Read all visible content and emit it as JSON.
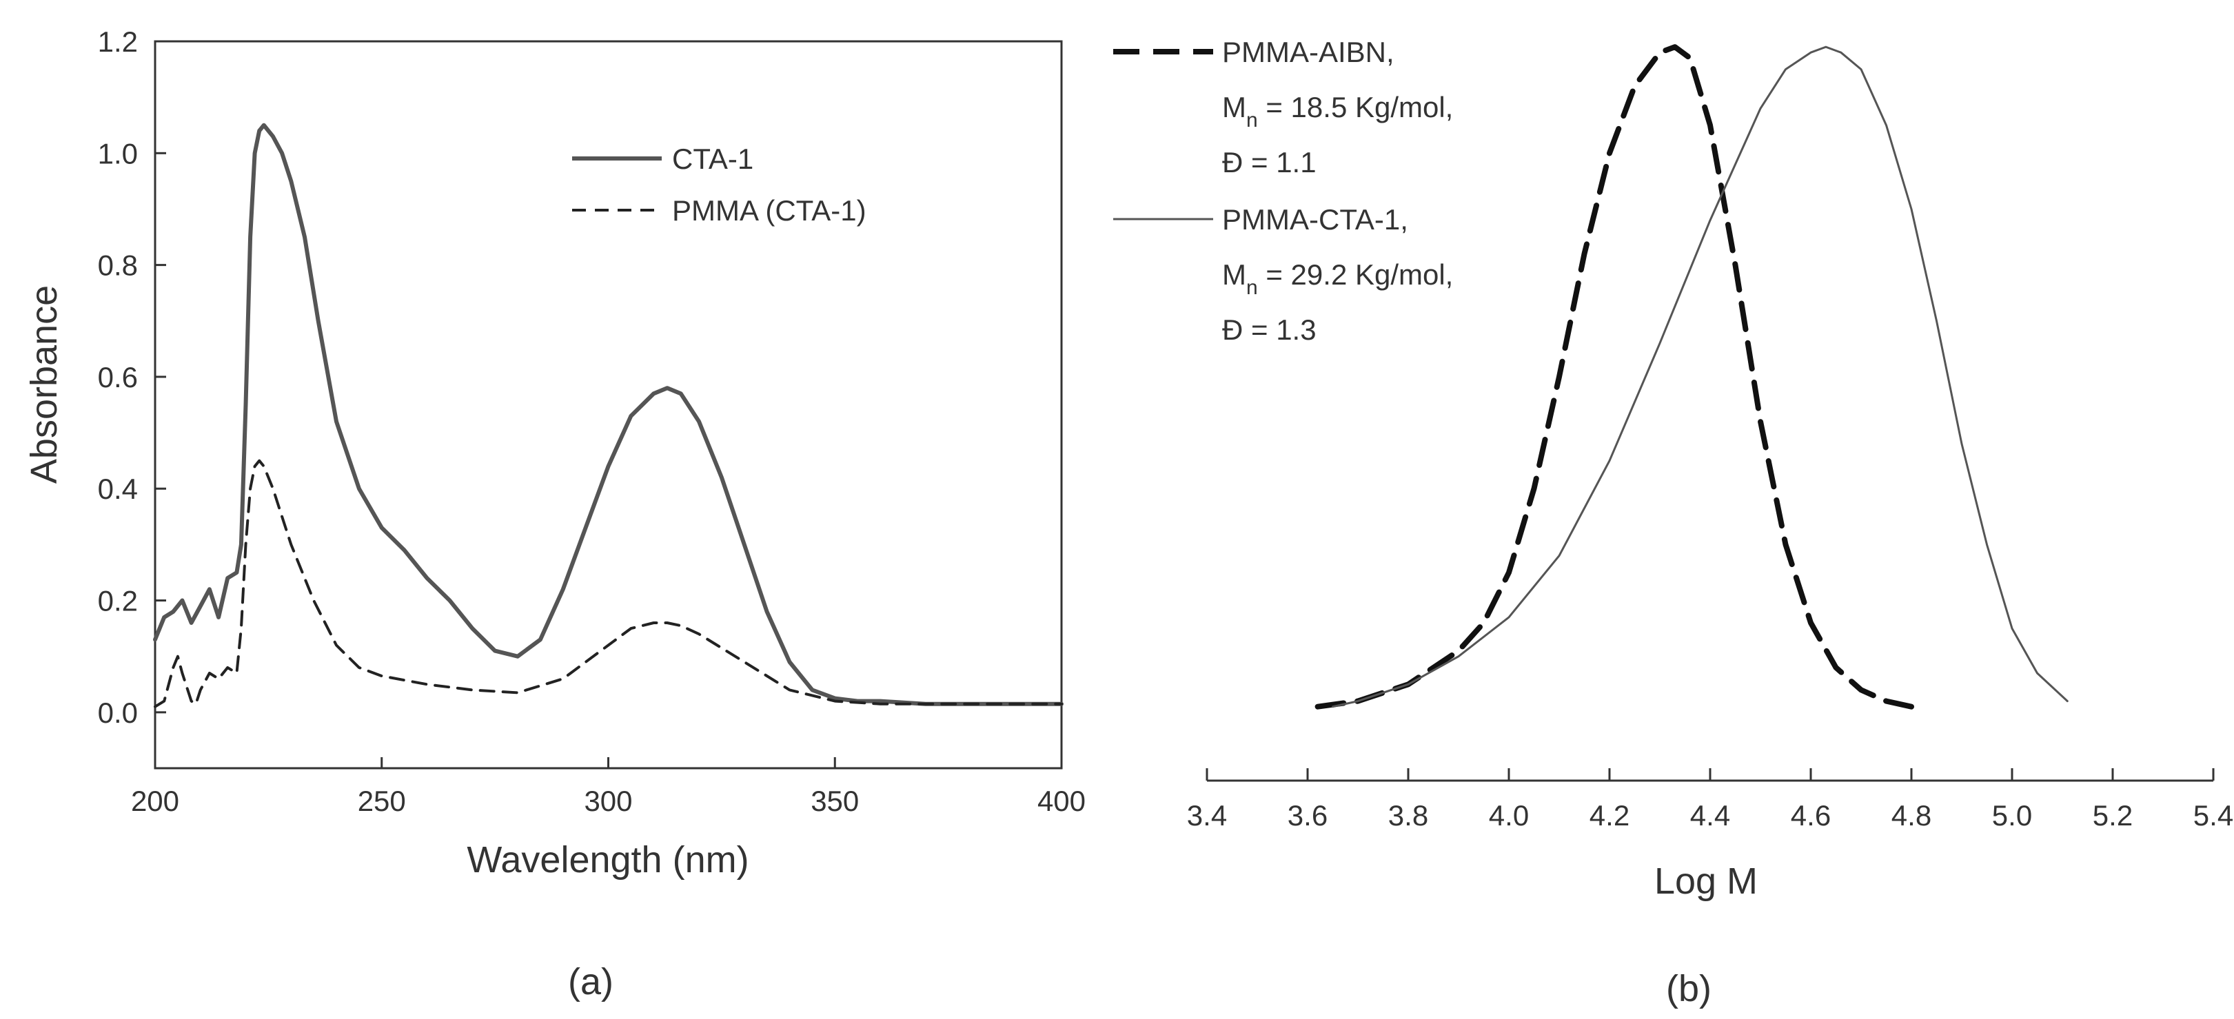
{
  "chart_data": [
    {
      "id": "panel-a",
      "type": "line",
      "panel_label": "(a)",
      "xlabel": "Wavelength (nm)",
      "ylabel": "Absorbance",
      "xlim": [
        200,
        400
      ],
      "ylim": [
        -0.1,
        1.2
      ],
      "x_ticks": [
        200,
        250,
        300,
        350,
        400
      ],
      "x_tick_labels": [
        "200",
        "250",
        "300",
        "350",
        "400"
      ],
      "y_ticks": [
        0.0,
        0.2,
        0.4,
        0.6,
        0.8,
        1.0,
        1.2
      ],
      "y_tick_labels": [
        "0.0",
        "0.2",
        "0.4",
        "0.6",
        "0.8",
        "1.0",
        "1.2"
      ],
      "grid": false,
      "legend_position": "upper-right",
      "series": [
        {
          "name": "CTA-1",
          "style": "solid",
          "color": "#555555",
          "x": [
            200,
            202,
            204,
            206,
            208,
            210,
            212,
            214,
            216,
            218,
            219,
            220,
            221,
            222,
            223,
            224,
            226,
            228,
            230,
            233,
            236,
            240,
            245,
            250,
            255,
            260,
            265,
            270,
            275,
            280,
            285,
            290,
            295,
            300,
            305,
            310,
            313,
            316,
            320,
            325,
            330,
            335,
            340,
            345,
            350,
            355,
            360,
            370,
            380,
            390,
            400
          ],
          "y": [
            0.13,
            0.17,
            0.18,
            0.2,
            0.16,
            0.19,
            0.22,
            0.17,
            0.24,
            0.25,
            0.3,
            0.55,
            0.85,
            1.0,
            1.04,
            1.05,
            1.03,
            1.0,
            0.95,
            0.85,
            0.7,
            0.52,
            0.4,
            0.33,
            0.29,
            0.24,
            0.2,
            0.15,
            0.11,
            0.1,
            0.13,
            0.22,
            0.33,
            0.44,
            0.53,
            0.57,
            0.58,
            0.57,
            0.52,
            0.42,
            0.3,
            0.18,
            0.09,
            0.04,
            0.025,
            0.02,
            0.02,
            0.015,
            0.015,
            0.015,
            0.015
          ]
        },
        {
          "name": "PMMA (CTA-1)",
          "style": "dashed",
          "color": "#222222",
          "x": [
            200,
            202,
            204,
            205,
            206,
            208,
            209,
            210,
            212,
            214,
            216,
            218,
            219,
            220,
            221,
            222,
            223,
            224,
            226,
            228,
            230,
            235,
            240,
            245,
            250,
            260,
            270,
            280,
            290,
            300,
            305,
            310,
            313,
            316,
            320,
            330,
            340,
            350,
            360,
            380,
            400
          ],
          "y": [
            0.01,
            0.02,
            0.08,
            0.1,
            0.07,
            0.02,
            0.015,
            0.04,
            0.07,
            0.06,
            0.08,
            0.07,
            0.15,
            0.3,
            0.4,
            0.44,
            0.45,
            0.44,
            0.4,
            0.35,
            0.3,
            0.2,
            0.12,
            0.08,
            0.065,
            0.05,
            0.04,
            0.035,
            0.06,
            0.12,
            0.15,
            0.16,
            0.16,
            0.155,
            0.14,
            0.09,
            0.04,
            0.02,
            0.015,
            0.015,
            0.015
          ]
        }
      ]
    },
    {
      "id": "panel-b",
      "type": "line",
      "panel_label": "(b)",
      "xlabel": "Log M",
      "ylabel": "",
      "xlim": [
        3.4,
        5.4
      ],
      "ylim": [
        -0.1,
        1.2
      ],
      "x_ticks": [
        3.4,
        3.6,
        3.8,
        4.0,
        4.2,
        4.4,
        4.6,
        4.8,
        5.0,
        5.2,
        5.4
      ],
      "x_tick_labels": [
        "3.4",
        "3.6",
        "3.8",
        "4.0",
        "4.2",
        "4.4",
        "4.6",
        "4.8",
        "5.0",
        "5.2",
        "5.4"
      ],
      "y_axis_visible": false,
      "grid": false,
      "legend_position": "upper-left",
      "series": [
        {
          "name": "PMMA-AIBN,",
          "legend_lines": [
            {
              "main": "M",
              "sub": "n",
              "rest": " = 18.5 Kg/mol,"
            },
            {
              "main": "Đ = 1.1",
              "sub": "",
              "rest": ""
            }
          ],
          "style": "dashed",
          "color": "#111111",
          "x": [
            3.62,
            3.7,
            3.8,
            3.9,
            3.95,
            4.0,
            4.05,
            4.1,
            4.15,
            4.2,
            4.25,
            4.3,
            4.33,
            4.36,
            4.4,
            4.45,
            4.5,
            4.55,
            4.6,
            4.65,
            4.7,
            4.75,
            4.8
          ],
          "y": [
            0.01,
            0.02,
            0.05,
            0.11,
            0.16,
            0.25,
            0.4,
            0.6,
            0.82,
            1.0,
            1.12,
            1.18,
            1.19,
            1.17,
            1.05,
            0.8,
            0.52,
            0.3,
            0.16,
            0.08,
            0.04,
            0.02,
            0.01
          ]
        },
        {
          "name": "PMMA-CTA-1,",
          "legend_lines": [
            {
              "main": "M",
              "sub": "n",
              "rest": " = 29.2 Kg/mol,"
            },
            {
              "main": "Đ = 1.3",
              "sub": "",
              "rest": ""
            }
          ],
          "style": "solid",
          "color": "#555555",
          "x": [
            3.65,
            3.7,
            3.8,
            3.9,
            4.0,
            4.1,
            4.2,
            4.3,
            4.4,
            4.5,
            4.55,
            4.6,
            4.63,
            4.66,
            4.7,
            4.75,
            4.8,
            4.85,
            4.9,
            4.95,
            5.0,
            5.05,
            5.11
          ],
          "y": [
            0.01,
            0.02,
            0.05,
            0.1,
            0.17,
            0.28,
            0.45,
            0.66,
            0.88,
            1.08,
            1.15,
            1.18,
            1.19,
            1.18,
            1.15,
            1.05,
            0.9,
            0.7,
            0.48,
            0.3,
            0.15,
            0.07,
            0.02
          ]
        }
      ]
    }
  ]
}
